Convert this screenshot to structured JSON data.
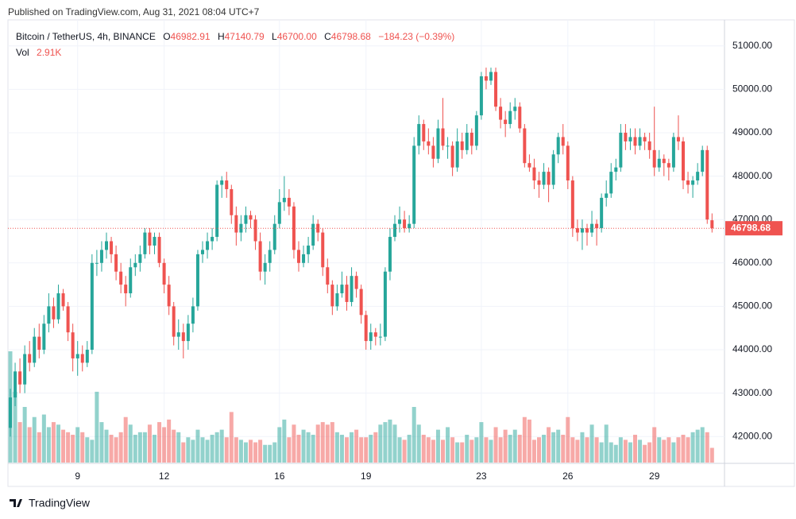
{
  "header": {
    "published": "Published on TradingView.com, Aug 31, 2021 08:04 UTC+7"
  },
  "chart_data": {
    "type": "candlestick",
    "symbol": "Bitcoin / TetherUS, 4h, BINANCE",
    "legend": {
      "o_key": "O",
      "o": "46982.91",
      "h_key": "H",
      "h": "47140.79",
      "l_key": "L",
      "l": "46700.00",
      "c_key": "C",
      "c": "46798.68",
      "change": "−184.23 (−0.39%)",
      "vol_key": "Vol",
      "vol": "2.91K"
    },
    "last_price_label": "46798.68",
    "up_color": "#26a69a",
    "down_color": "#ef5350",
    "ylim": [
      41400,
      51600
    ],
    "yticks": [
      {
        "value": 42000,
        "label": "42000.00"
      },
      {
        "value": 43000,
        "label": "43000.00"
      },
      {
        "value": 44000,
        "label": "44000.00"
      },
      {
        "value": 45000,
        "label": "45000.00"
      },
      {
        "value": 46000,
        "label": "46000.00"
      },
      {
        "value": 47000,
        "label": "47000.00"
      },
      {
        "value": 48000,
        "label": "48000.00"
      },
      {
        "value": 49000,
        "label": "49000.00"
      },
      {
        "value": 50000,
        "label": "50000.00"
      },
      {
        "value": 51000,
        "label": "51000.00"
      }
    ],
    "xticks": [
      {
        "value": 14,
        "label": "9"
      },
      {
        "value": 32,
        "label": "12"
      },
      {
        "value": 56,
        "label": "16"
      },
      {
        "value": 74,
        "label": "19"
      },
      {
        "value": 98,
        "label": "23"
      },
      {
        "value": 116,
        "label": "26"
      },
      {
        "value": 134,
        "label": "29"
      }
    ],
    "grid": true,
    "ohlc": [
      [
        42200,
        43100,
        42000,
        42900
      ],
      [
        42900,
        43700,
        42700,
        43500
      ],
      [
        43500,
        43800,
        43000,
        43200
      ],
      [
        43200,
        44100,
        43000,
        43900
      ],
      [
        43900,
        44200,
        43500,
        43700
      ],
      [
        43700,
        44500,
        43600,
        44300
      ],
      [
        44300,
        44600,
        43800,
        44000
      ],
      [
        44000,
        44800,
        43900,
        44600
      ],
      [
        44600,
        45300,
        44400,
        45000
      ],
      [
        45000,
        45200,
        44500,
        44700
      ],
      [
        44700,
        45500,
        44600,
        45300
      ],
      [
        45300,
        45400,
        44900,
        45000
      ],
      [
        45000,
        45100,
        44200,
        44400
      ],
      [
        44400,
        44600,
        43500,
        43800
      ],
      [
        43800,
        44200,
        43400,
        43900
      ],
      [
        43900,
        44100,
        43500,
        43700
      ],
      [
        43700,
        44200,
        43600,
        44000
      ],
      [
        44000,
        46200,
        43900,
        46000
      ],
      [
        46000,
        46300,
        45700,
        46000
      ],
      [
        46000,
        46500,
        45800,
        46300
      ],
      [
        46300,
        46700,
        46100,
        46500
      ],
      [
        46500,
        46600,
        46000,
        46200
      ],
      [
        46200,
        46400,
        45600,
        45800
      ],
      [
        45800,
        46000,
        45300,
        45500
      ],
      [
        45500,
        45700,
        45000,
        45300
      ],
      [
        45300,
        46100,
        45200,
        45900
      ],
      [
        45900,
        46200,
        45700,
        46000
      ],
      [
        46000,
        46400,
        45800,
        46200
      ],
      [
        46200,
        46800,
        46100,
        46700
      ],
      [
        46700,
        46800,
        46200,
        46400
      ],
      [
        46400,
        46700,
        46200,
        46600
      ],
      [
        46600,
        46700,
        45900,
        46000
      ],
      [
        46000,
        46100,
        45300,
        45500
      ],
      [
        45500,
        45700,
        44800,
        45000
      ],
      [
        45000,
        45100,
        44100,
        44300
      ],
      [
        44300,
        44700,
        44000,
        44400
      ],
      [
        44400,
        44600,
        43800,
        44200
      ],
      [
        44200,
        44800,
        44000,
        44600
      ],
      [
        44600,
        45200,
        44400,
        45000
      ],
      [
        45000,
        46300,
        44900,
        46200
      ],
      [
        46200,
        46500,
        46000,
        46300
      ],
      [
        46300,
        46700,
        46100,
        46500
      ],
      [
        46500,
        46800,
        46300,
        46600
      ],
      [
        46600,
        47900,
        46500,
        47800
      ],
      [
        47800,
        48000,
        47500,
        47900
      ],
      [
        47900,
        48100,
        47500,
        47700
      ],
      [
        47700,
        47800,
        46900,
        47100
      ],
      [
        47100,
        47300,
        46400,
        46700
      ],
      [
        46700,
        47100,
        46500,
        46900
      ],
      [
        46900,
        47300,
        46700,
        47100
      ],
      [
        47100,
        47200,
        46800,
        47000
      ],
      [
        47000,
        47100,
        46300,
        46500
      ],
      [
        46500,
        46700,
        45600,
        45800
      ],
      [
        45800,
        46200,
        45500,
        46000
      ],
      [
        46000,
        46500,
        45800,
        46300
      ],
      [
        46300,
        47100,
        46200,
        46900
      ],
      [
        46900,
        47700,
        46800,
        47400
      ],
      [
        47400,
        48000,
        47200,
        47500
      ],
      [
        47500,
        47700,
        47100,
        47300
      ],
      [
        47300,
        47400,
        46100,
        46300
      ],
      [
        46300,
        46500,
        45800,
        46000
      ],
      [
        46000,
        46400,
        45900,
        46200
      ],
      [
        46200,
        46600,
        46000,
        46400
      ],
      [
        46400,
        47100,
        46300,
        46900
      ],
      [
        46900,
        47000,
        46500,
        46700
      ],
      [
        46700,
        46800,
        45700,
        45900
      ],
      [
        45900,
        46100,
        45300,
        45500
      ],
      [
        45500,
        45600,
        44800,
        45000
      ],
      [
        45000,
        45500,
        44900,
        45300
      ],
      [
        45300,
        45800,
        45200,
        45500
      ],
      [
        45500,
        45700,
        44900,
        45100
      ],
      [
        45100,
        45900,
        45000,
        45700
      ],
      [
        45700,
        45800,
        45200,
        45400
      ],
      [
        45400,
        45500,
        44600,
        44800
      ],
      [
        44800,
        44900,
        44000,
        44200
      ],
      [
        44200,
        44600,
        44000,
        44400
      ],
      [
        44400,
        44500,
        44100,
        44300
      ],
      [
        44300,
        44600,
        44100,
        44300
      ],
      [
        44300,
        45900,
        44200,
        45800
      ],
      [
        45800,
        46800,
        45600,
        46600
      ],
      [
        46600,
        47100,
        46500,
        46900
      ],
      [
        46900,
        47300,
        46700,
        47000
      ],
      [
        47000,
        47200,
        46700,
        46800
      ],
      [
        46800,
        47100,
        46700,
        46900
      ],
      [
        46900,
        48900,
        46800,
        48700
      ],
      [
        48700,
        49400,
        48500,
        49200
      ],
      [
        49200,
        49300,
        48600,
        48800
      ],
      [
        48800,
        49100,
        48500,
        48700
      ],
      [
        48700,
        48900,
        48200,
        48400
      ],
      [
        48400,
        49300,
        48300,
        49100
      ],
      [
        49100,
        49800,
        48600,
        48700
      ],
      [
        48700,
        48900,
        48400,
        48700
      ],
      [
        48700,
        48800,
        48000,
        48200
      ],
      [
        48200,
        49100,
        48100,
        48800
      ],
      [
        48800,
        49000,
        48400,
        48600
      ],
      [
        48600,
        49200,
        48500,
        49000
      ],
      [
        49000,
        49100,
        48500,
        48700
      ],
      [
        48700,
        49500,
        48600,
        49400
      ],
      [
        49400,
        50400,
        49300,
        50300
      ],
      [
        50300,
        50500,
        50000,
        50200
      ],
      [
        50200,
        50500,
        50100,
        50400
      ],
      [
        50400,
        50500,
        49500,
        49600
      ],
      [
        49600,
        49800,
        49100,
        49300
      ],
      [
        49300,
        49500,
        48900,
        49200
      ],
      [
        49200,
        49700,
        49100,
        49500
      ],
      [
        49500,
        49800,
        49300,
        49600
      ],
      [
        49600,
        49700,
        49000,
        49100
      ],
      [
        49100,
        49200,
        48200,
        48300
      ],
      [
        48300,
        48500,
        48100,
        48200
      ],
      [
        48200,
        48400,
        47700,
        47900
      ],
      [
        47900,
        48100,
        47500,
        47800
      ],
      [
        47800,
        48300,
        47700,
        48100
      ],
      [
        48100,
        48200,
        47400,
        47800
      ],
      [
        47800,
        48600,
        47700,
        48500
      ],
      [
        48500,
        49000,
        48300,
        48900
      ],
      [
        48900,
        49200,
        48500,
        48700
      ],
      [
        48700,
        48800,
        47700,
        47900
      ],
      [
        47900,
        48000,
        46600,
        46800
      ],
      [
        46800,
        47000,
        46500,
        46700
      ],
      [
        46700,
        47000,
        46300,
        46800
      ],
      [
        46800,
        46900,
        46400,
        46700
      ],
      [
        46700,
        47200,
        46600,
        46900
      ],
      [
        46900,
        47000,
        46400,
        46800
      ],
      [
        46800,
        47600,
        46700,
        47500
      ],
      [
        47500,
        47900,
        47300,
        47600
      ],
      [
        47600,
        48300,
        47500,
        48100
      ],
      [
        48100,
        48400,
        47900,
        48200
      ],
      [
        48200,
        49200,
        48100,
        49000
      ],
      [
        49000,
        49200,
        48600,
        48800
      ],
      [
        48800,
        49100,
        48600,
        48900
      ],
      [
        48900,
        49100,
        48500,
        48700
      ],
      [
        48700,
        49100,
        48600,
        48900
      ],
      [
        48900,
        49000,
        48600,
        48800
      ],
      [
        48800,
        49000,
        48400,
        48600
      ],
      [
        48600,
        49600,
        48000,
        48200
      ],
      [
        48200,
        48600,
        48100,
        48400
      ],
      [
        48400,
        48500,
        48000,
        48300
      ],
      [
        48300,
        48400,
        47900,
        48200
      ],
      [
        48200,
        49000,
        48100,
        48900
      ],
      [
        48900,
        49400,
        48600,
        48800
      ],
      [
        48800,
        48900,
        47700,
        47900
      ],
      [
        47900,
        48100,
        47600,
        47800
      ],
      [
        47800,
        48000,
        47500,
        47900
      ],
      [
        47900,
        48300,
        47800,
        48100
      ],
      [
        48100,
        48700,
        48000,
        48600
      ],
      [
        48600,
        48700,
        46900,
        47000
      ],
      [
        46982.91,
        47140.79,
        46700,
        46798.68
      ]
    ],
    "volume": [
      22000,
      14000,
      8000,
      11000,
      7000,
      9000,
      6000,
      9500,
      7000,
      8000,
      7500,
      6500,
      6000,
      5500,
      7000,
      6000,
      5000,
      4500,
      14000,
      8000,
      6500,
      5500,
      5000,
      6000,
      9000,
      7500,
      5500,
      6000,
      6000,
      7500,
      5500,
      8000,
      7000,
      8500,
      6500,
      6000,
      4000,
      5000,
      4500,
      6500,
      5000,
      4500,
      5500,
      6000,
      6500,
      5000,
      10000,
      5000,
      4500,
      4000,
      4500,
      4000,
      4500,
      3500,
      3500,
      4000,
      7000,
      8500,
      5000,
      7500,
      5500,
      6500,
      6000,
      5500,
      7500,
      8000,
      7500,
      8000,
      6000,
      5500,
      5000,
      6000,
      6500,
      5000,
      5000,
      5500,
      6000,
      7500,
      8000,
      8500,
      7500,
      5000,
      4500,
      5500,
      11000,
      7500,
      5500,
      5000,
      4500,
      6500,
      4500,
      7000,
      5000,
      4000,
      4000,
      5500,
      4500,
      5000,
      8000,
      5000,
      4500,
      7000,
      5000,
      6500,
      5500,
      6500,
      5500,
      9000,
      8500,
      4500,
      5000,
      5500,
      7000,
      6000,
      6500,
      5500,
      9000,
      5000,
      4500,
      6000,
      5000,
      7500,
      5000,
      4000,
      7500,
      4000,
      3500,
      5000,
      4500,
      4000,
      5500,
      4500,
      3500,
      4000,
      7000,
      5000,
      4500,
      5000,
      4000,
      5000,
      5500,
      5000,
      6000,
      6500,
      7000,
      6000,
      2910
    ]
  },
  "footer": {
    "brand": "TradingView"
  }
}
